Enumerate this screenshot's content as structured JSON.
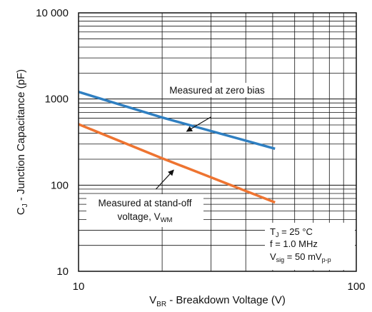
{
  "chart_data": {
    "type": "line",
    "x_scale": "log",
    "y_scale": "log",
    "xlim": [
      10,
      100
    ],
    "ylim": [
      10,
      10000
    ],
    "grid": true,
    "x_ticks": [
      {
        "value": 10,
        "label": "10"
      },
      {
        "value": 100,
        "label": "100"
      }
    ],
    "y_ticks": [
      {
        "value": 10,
        "label": "10"
      },
      {
        "value": 100,
        "label": "100"
      },
      {
        "value": 1000,
        "label": "1000"
      },
      {
        "value": 10000,
        "label": "10 000"
      }
    ],
    "xlabel": {
      "main": "V",
      "sub": "BR",
      "rest": " - Breakdown Voltage (V)"
    },
    "ylabel": {
      "main": "C",
      "sub": "J",
      "rest": " - Junction Capacitance (pF)"
    },
    "series": [
      {
        "color": "#2f7fc1",
        "points": [
          [
            10,
            1210
          ],
          [
            20,
            610
          ],
          [
            25,
            500
          ],
          [
            51,
            265
          ]
        ]
      },
      {
        "color": "#ee7431",
        "points": [
          [
            10,
            510
          ],
          [
            20,
            205
          ],
          [
            25,
            155
          ],
          [
            51,
            63
          ]
        ]
      }
    ],
    "annotations": {
      "zero_bias": {
        "text": "Measured at zero bias",
        "arrow_from": [
          30,
          620
        ],
        "arrow_to": [
          24.5,
          420
        ]
      },
      "standoff": {
        "line1": "Measured at stand-off",
        "line2_main": "voltage, V",
        "line2_sub": "WM",
        "arrow_from": [
          19,
          90
        ],
        "arrow_to": [
          22,
          150
        ]
      }
    },
    "conditions": {
      "tj_main": "T",
      "tj_sub": "J",
      "tj_rest": " = 25 °C",
      "f": "f = 1.0 MHz",
      "vsig_main": "V",
      "vsig_sub": "sig",
      "vsig_rest": " = 50 mV",
      "vsig_sub2": "p-p"
    }
  }
}
